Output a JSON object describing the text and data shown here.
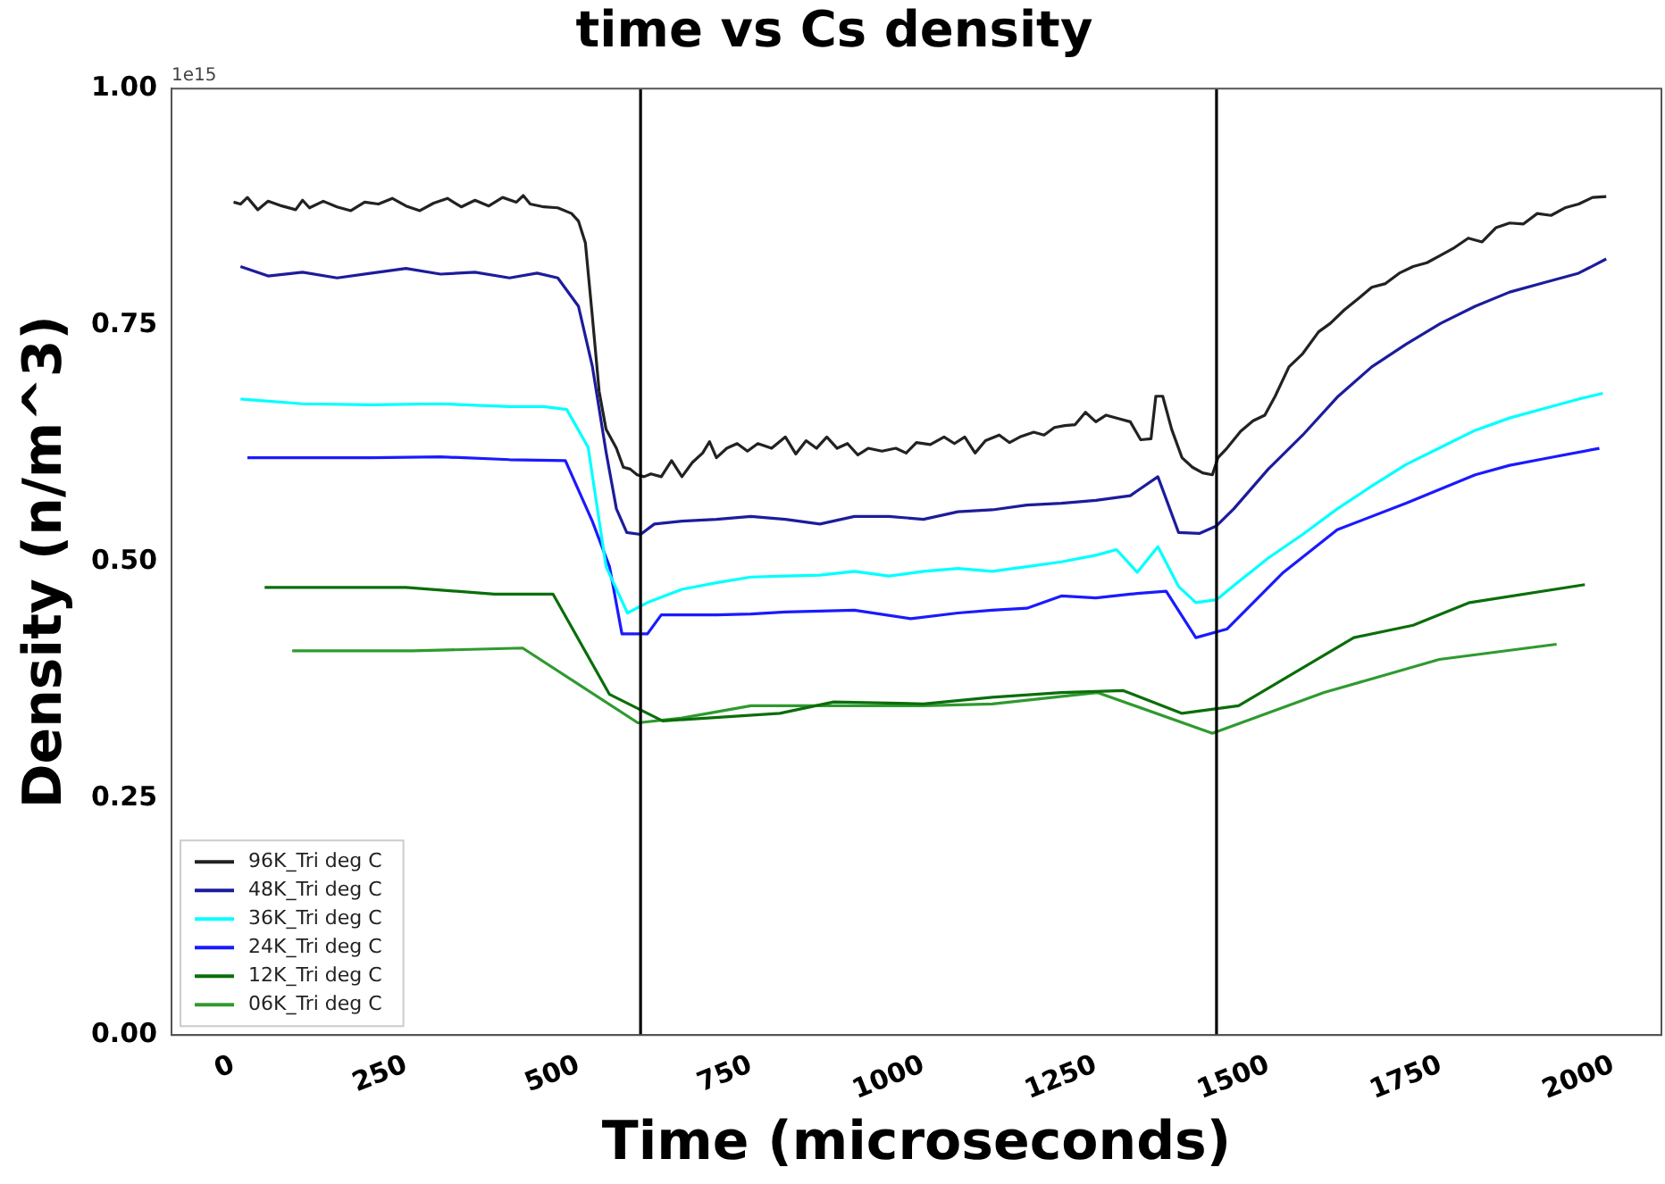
{
  "chart_data": {
    "type": "line",
    "title": "time vs Cs density",
    "xlabel": "Time (microseconds)",
    "ylabel": "Density (n/m^3)",
    "annotations": [
      "1e15"
    ],
    "xlim": [
      -90,
      2070
    ],
    "xticks": [
      0,
      250,
      500,
      750,
      1000,
      1250,
      1500,
      1750,
      2000
    ],
    "ylim": [
      0,
      1
    ],
    "yticks": [
      {
        "value": 0,
        "label": "0.00"
      },
      {
        "value": 0.25,
        "label": "0.25"
      },
      {
        "value": 0.5,
        "label": "0.50"
      },
      {
        "value": 0.75,
        "label": "0.75"
      },
      {
        "value": 1,
        "label": "1.00"
      }
    ],
    "grid": false,
    "legend": "bottom left",
    "marker": "none",
    "line_style": "solid",
    "ref_lines": [
      {
        "axis": "x",
        "value": 590,
        "color": "#000000"
      },
      {
        "axis": "x",
        "value": 1425,
        "color": "#000000"
      }
    ],
    "series": [
      {
        "name": "96K_Tri deg C",
        "color": "#222222",
        "x": [
          0,
          10,
          20,
          35,
          50,
          70,
          90,
          100,
          110,
          130,
          150,
          170,
          190,
          210,
          230,
          250,
          270,
          290,
          310,
          330,
          350,
          370,
          390,
          410,
          420,
          430,
          450,
          470,
          490,
          500,
          510,
          520,
          530,
          540,
          555,
          565,
          575,
          585,
          595,
          605,
          620,
          635,
          650,
          665,
          680,
          690,
          700,
          715,
          730,
          745,
          760,
          780,
          800,
          815,
          830,
          845,
          860,
          875,
          890,
          905,
          920,
          940,
          960,
          975,
          990,
          1010,
          1030,
          1045,
          1060,
          1075,
          1090,
          1110,
          1125,
          1140,
          1160,
          1175,
          1190,
          1205,
          1220,
          1235,
          1250,
          1265,
          1285,
          1300,
          1315,
          1330,
          1337,
          1347,
          1360,
          1375,
          1390,
          1405,
          1419,
          1427,
          1440,
          1460,
          1478,
          1495,
          1510,
          1530,
          1550,
          1573,
          1590,
          1610,
          1632,
          1650,
          1670,
          1690,
          1710,
          1730,
          1750,
          1770,
          1790,
          1810,
          1830,
          1850,
          1870,
          1890,
          1910,
          1930,
          1950,
          1970,
          1990
        ],
        "values": [
          0.88,
          0.878,
          0.885,
          0.872,
          0.881,
          0.876,
          0.872,
          0.882,
          0.874,
          0.881,
          0.875,
          0.871,
          0.88,
          0.878,
          0.884,
          0.876,
          0.871,
          0.879,
          0.884,
          0.875,
          0.882,
          0.876,
          0.885,
          0.88,
          0.887,
          0.878,
          0.875,
          0.874,
          0.868,
          0.86,
          0.837,
          0.76,
          0.68,
          0.64,
          0.62,
          0.6,
          0.598,
          0.592,
          0.59,
          0.593,
          0.59,
          0.607,
          0.59,
          0.605,
          0.615,
          0.627,
          0.61,
          0.62,
          0.625,
          0.617,
          0.625,
          0.62,
          0.632,
          0.614,
          0.628,
          0.62,
          0.632,
          0.62,
          0.625,
          0.613,
          0.62,
          0.617,
          0.62,
          0.615,
          0.626,
          0.624,
          0.632,
          0.625,
          0.632,
          0.615,
          0.628,
          0.634,
          0.626,
          0.632,
          0.637,
          0.634,
          0.642,
          0.644,
          0.645,
          0.658,
          0.648,
          0.655,
          0.651,
          0.648,
          0.629,
          0.63,
          0.675,
          0.675,
          0.64,
          0.61,
          0.6,
          0.594,
          0.592,
          0.61,
          0.62,
          0.638,
          0.649,
          0.655,
          0.675,
          0.706,
          0.72,
          0.743,
          0.752,
          0.766,
          0.779,
          0.79,
          0.794,
          0.805,
          0.812,
          0.816,
          0.824,
          0.832,
          0.842,
          0.838,
          0.853,
          0.858,
          0.857,
          0.868,
          0.866,
          0.874,
          0.878,
          0.885,
          0.886
        ]
      },
      {
        "name": "48K_Tri deg C",
        "color": "#1c1c9c",
        "x": [
          10,
          50,
          100,
          150,
          200,
          250,
          300,
          350,
          400,
          440,
          470,
          500,
          520,
          540,
          555,
          570,
          590,
          610,
          650,
          700,
          750,
          800,
          850,
          900,
          950,
          1000,
          1050,
          1100,
          1150,
          1200,
          1250,
          1300,
          1340,
          1370,
          1400,
          1425,
          1450,
          1500,
          1550,
          1600,
          1650,
          1700,
          1750,
          1800,
          1850,
          1900,
          1950,
          1990
        ],
        "values": [
          0.812,
          0.802,
          0.806,
          0.8,
          0.805,
          0.81,
          0.804,
          0.806,
          0.8,
          0.805,
          0.8,
          0.77,
          0.707,
          0.616,
          0.556,
          0.531,
          0.529,
          0.54,
          0.543,
          0.545,
          0.548,
          0.545,
          0.54,
          0.548,
          0.548,
          0.545,
          0.553,
          0.555,
          0.56,
          0.562,
          0.565,
          0.57,
          0.59,
          0.531,
          0.53,
          0.538,
          0.556,
          0.598,
          0.634,
          0.674,
          0.706,
          0.73,
          0.752,
          0.77,
          0.785,
          0.795,
          0.805,
          0.82
        ]
      },
      {
        "name": "36K_Tri deg C",
        "color": "#00ffff",
        "x": [
          10,
          100,
          200,
          300,
          400,
          450,
          483,
          514,
          540,
          571,
          600,
          650,
          700,
          750,
          800,
          850,
          900,
          950,
          1000,
          1050,
          1100,
          1150,
          1200,
          1250,
          1280,
          1310,
          1340,
          1370,
          1395,
          1425,
          1450,
          1500,
          1550,
          1600,
          1650,
          1700,
          1750,
          1800,
          1850,
          1900,
          1950,
          1985
        ],
        "values": [
          0.672,
          0.667,
          0.666,
          0.667,
          0.664,
          0.664,
          0.661,
          0.621,
          0.495,
          0.446,
          0.457,
          0.471,
          0.478,
          0.484,
          0.485,
          0.486,
          0.49,
          0.485,
          0.49,
          0.493,
          0.49,
          0.495,
          0.5,
          0.507,
          0.513,
          0.489,
          0.516,
          0.474,
          0.457,
          0.46,
          0.475,
          0.504,
          0.529,
          0.556,
          0.58,
          0.603,
          0.621,
          0.639,
          0.652,
          0.662,
          0.672,
          0.678
        ]
      },
      {
        "name": "24K_Tri deg C",
        "color": "#1a1aff",
        "x": [
          20,
          100,
          200,
          300,
          400,
          481,
          520,
          545,
          563,
          600,
          620,
          700,
          750,
          800,
          900,
          982,
          1050,
          1100,
          1150,
          1200,
          1250,
          1300,
          1352,
          1395,
          1440,
          1522,
          1600,
          1700,
          1800,
          1850,
          1900,
          1980
        ],
        "values": [
          0.61,
          0.61,
          0.61,
          0.611,
          0.608,
          0.607,
          0.543,
          0.495,
          0.424,
          0.424,
          0.444,
          0.444,
          0.445,
          0.447,
          0.449,
          0.44,
          0.446,
          0.449,
          0.451,
          0.464,
          0.462,
          0.466,
          0.469,
          0.42,
          0.429,
          0.489,
          0.534,
          0.562,
          0.592,
          0.602,
          0.609,
          0.62
        ]
      },
      {
        "name": "12K_Tri deg C",
        "color": "#0a6e0a",
        "x": [
          45,
          250,
          378,
          463,
          545,
          622,
          792,
          870,
          1000,
          1100,
          1200,
          1290,
          1375,
          1457,
          1624,
          1710,
          1792,
          1959
        ],
        "values": [
          0.473,
          0.473,
          0.466,
          0.466,
          0.36,
          0.332,
          0.34,
          0.352,
          0.35,
          0.357,
          0.362,
          0.364,
          0.34,
          0.348,
          0.42,
          0.433,
          0.457,
          0.476
        ]
      },
      {
        "name": "06K_Tri deg C",
        "color": "#2f9a2f",
        "x": [
          85,
          260,
          419,
          586,
          650,
          750,
          900,
          1000,
          1100,
          1252,
          1419,
          1581,
          1748,
          1918
        ],
        "values": [
          0.406,
          0.406,
          0.409,
          0.33,
          0.335,
          0.348,
          0.348,
          0.348,
          0.35,
          0.362,
          0.319,
          0.362,
          0.397,
          0.413
        ]
      }
    ]
  }
}
